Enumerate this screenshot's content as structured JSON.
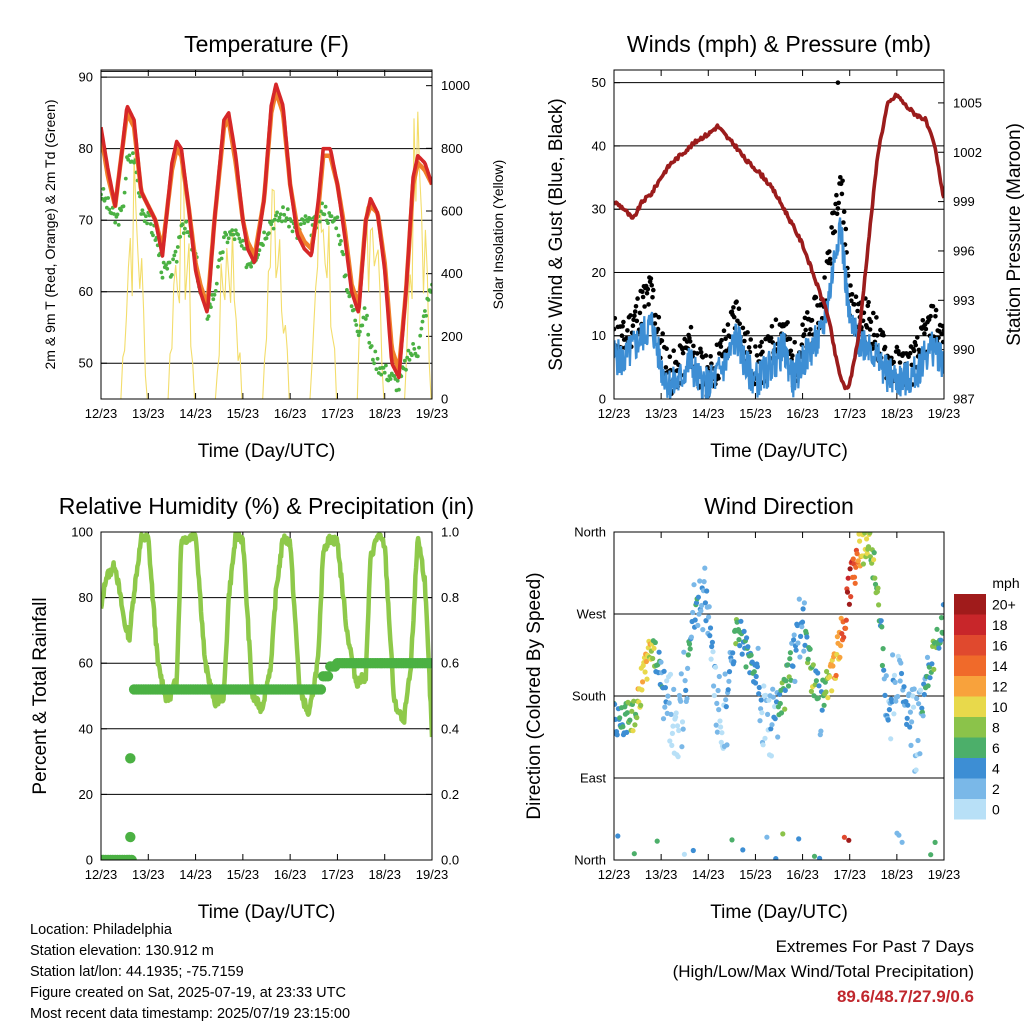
{
  "colors": {
    "temp_2m": "#d62728",
    "temp_9m": "#f07f2a",
    "dewpoint": "#4bb143",
    "solar": "#f3dd6b",
    "wind": "#3d8ed4",
    "gust": "#000000",
    "pressure": "#9b1c1c",
    "rh": "#8ec94a",
    "precip": "#4bb143"
  },
  "x_ticks": [
    "12/23",
    "13/23",
    "14/23",
    "15/23",
    "16/23",
    "17/23",
    "18/23",
    "19/23"
  ],
  "x_label": "Time (Day/UTC)",
  "chart_data": [
    {
      "type": "line",
      "title": "Temperature (F)",
      "xlabel": "Time (Day/UTC)",
      "ylabel": "2m & 9m T (Red, Orange) & 2m Td (Green)",
      "ylabel_right": "Solar Insolation (Yellow)",
      "ylim": [
        45,
        91
      ],
      "y_ticks": [
        50,
        60,
        70,
        80,
        90
      ],
      "ylim_right": [
        0,
        1050
      ],
      "y_ticks_right": [
        0,
        200,
        400,
        600,
        800,
        1000
      ],
      "x": [
        12.0,
        12.15,
        12.3,
        12.45,
        12.55,
        12.7,
        12.85,
        13.0,
        13.15,
        13.3,
        13.5,
        13.6,
        13.7,
        13.85,
        14.0,
        14.1,
        14.25,
        14.4,
        14.6,
        14.7,
        14.85,
        15.0,
        15.1,
        15.25,
        15.45,
        15.6,
        15.7,
        15.85,
        16.0,
        16.15,
        16.3,
        16.45,
        16.6,
        16.7,
        16.85,
        17.0,
        17.15,
        17.3,
        17.45,
        17.6,
        17.7,
        17.85,
        18.0,
        18.15,
        18.3,
        18.45,
        18.6,
        18.7,
        18.85,
        19.0
      ],
      "series": [
        {
          "name": "2m T",
          "values": [
            83,
            77,
            72,
            80,
            86,
            84,
            74,
            72,
            70,
            65,
            78,
            81,
            80,
            72,
            63,
            60,
            57,
            70,
            84,
            85,
            79,
            70,
            66,
            64,
            73,
            86,
            89,
            86,
            75,
            68,
            66,
            65,
            73,
            80,
            80,
            75,
            68,
            60,
            57,
            70,
            73,
            71,
            63,
            50,
            48,
            60,
            76,
            79,
            78,
            75
          ]
        },
        {
          "name": "9m T",
          "values": [
            82,
            76,
            72,
            80,
            85,
            83,
            74,
            72,
            70,
            66,
            77,
            80,
            79,
            72,
            64,
            61,
            58,
            70,
            83,
            84,
            78,
            70,
            67,
            65,
            73,
            85,
            88,
            85,
            75,
            69,
            67,
            66,
            72,
            79,
            79,
            75,
            69,
            61,
            58,
            70,
            72,
            71,
            64,
            52,
            49,
            60,
            75,
            78,
            77,
            75
          ]
        },
        {
          "name": "2m Td",
          "values": [
            74,
            72,
            70,
            71,
            78,
            79,
            72,
            70,
            68,
            63,
            63,
            65,
            70,
            68,
            65,
            60,
            57,
            60,
            67,
            68,
            68,
            66,
            64,
            65,
            68,
            70,
            70,
            71,
            70,
            68,
            70,
            69,
            70,
            72,
            70,
            70,
            63,
            58,
            55,
            57,
            52,
            50,
            49,
            48,
            47,
            50,
            52,
            52,
            57,
            61
          ]
        }
      ],
      "solar_peaks": [
        {
          "x": 12.7,
          "value": 840
        },
        {
          "x": 13.7,
          "value": 820
        },
        {
          "x": 14.7,
          "value": 700
        },
        {
          "x": 15.7,
          "value": 880
        },
        {
          "x": 16.7,
          "value": 850
        },
        {
          "x": 17.7,
          "value": 960
        },
        {
          "x": 18.7,
          "value": 1000
        }
      ]
    },
    {
      "type": "scatter",
      "title": "Winds (mph) & Pressure (mb)",
      "xlabel": "Time (Day/UTC)",
      "ylabel": "Sonic Wind & Gust (Blue, Black)",
      "ylabel_right": "Station Pressure (Maroon)",
      "ylim": [
        0,
        52
      ],
      "y_ticks": [
        0,
        10,
        20,
        30,
        40,
        50
      ],
      "ylim_right": [
        987,
        1007
      ],
      "y_ticks_right": [
        987,
        990,
        993,
        996,
        999,
        1002,
        1005
      ],
      "x": [
        12.0,
        12.2,
        12.4,
        12.6,
        12.8,
        13.0,
        13.2,
        13.4,
        13.6,
        13.8,
        14.0,
        14.2,
        14.4,
        14.6,
        14.8,
        15.0,
        15.2,
        15.4,
        15.6,
        15.8,
        16.0,
        16.2,
        16.4,
        16.5,
        16.6,
        16.7,
        16.8,
        16.9,
        17.0,
        17.2,
        17.4,
        17.6,
        17.8,
        18.0,
        18.2,
        18.4,
        18.6,
        18.8,
        19.0
      ],
      "series": [
        {
          "name": "Wind",
          "values": [
            7,
            6,
            8,
            10,
            12,
            5,
            2,
            3,
            6,
            3,
            2,
            4,
            6,
            10,
            5,
            3,
            4,
            6,
            8,
            3,
            6,
            8,
            10,
            14,
            18,
            24,
            28,
            20,
            12,
            9,
            9,
            6,
            4,
            3,
            3,
            4,
            7,
            8,
            6
          ]
        },
        {
          "name": "Gust",
          "values": [
            10,
            9,
            12,
            15,
            17,
            8,
            4,
            5,
            9,
            5,
            3,
            6,
            9,
            14,
            8,
            5,
            6,
            9,
            12,
            5,
            9,
            12,
            14,
            19,
            24,
            31,
            36,
            27,
            16,
            12,
            13,
            9,
            6,
            5,
            5,
            6,
            10,
            12,
            9
          ]
        },
        {
          "name": "Pressure",
          "values": [
            999.0,
            998.6,
            997.9,
            999.0,
            999.5,
            1000.5,
            1001.3,
            1001.8,
            1002.3,
            1002.8,
            1003.1,
            1003.6,
            1002.9,
            1002.3,
            1001.5,
            1001.0,
            1000.4,
            999.6,
            998.6,
            997.5,
            996.4,
            994.8,
            993.2,
            992.5,
            991.2,
            989.6,
            988.4,
            987.6,
            987.9,
            991.0,
            996.6,
            1002.0,
            1004.9,
            1005.5,
            1004.8,
            1004.3,
            1004.0,
            1002.4,
            999.1
          ]
        }
      ],
      "max_gust_point": {
        "x": 16.75,
        "value": 50
      }
    },
    {
      "type": "line",
      "title": "Relative Humidity (%) & Precipitation (in)",
      "xlabel": "Time (Day/UTC)",
      "ylabel": "Percent & Total Rainfall",
      "ylim": [
        0,
        100
      ],
      "y_ticks": [
        0,
        20,
        40,
        60,
        80,
        100
      ],
      "ylim_right": [
        0,
        1
      ],
      "y_ticks_right": [
        0.0,
        0.2,
        0.4,
        0.6,
        0.8,
        1.0
      ],
      "x": [
        12.0,
        12.1,
        12.3,
        12.5,
        12.6,
        12.7,
        12.85,
        13.0,
        13.2,
        13.4,
        13.6,
        13.7,
        13.85,
        14.0,
        14.2,
        14.4,
        14.6,
        14.7,
        14.85,
        15.0,
        15.2,
        15.4,
        15.6,
        15.7,
        15.85,
        16.0,
        16.2,
        16.4,
        16.6,
        16.7,
        16.85,
        17.0,
        17.2,
        17.4,
        17.6,
        17.7,
        17.85,
        18.0,
        18.2,
        18.4,
        18.55,
        18.7,
        18.85,
        19.0
      ],
      "series": [
        {
          "name": "RH",
          "values": [
            76,
            86,
            90,
            72,
            68,
            82,
            98,
            98,
            60,
            48,
            55,
            98,
            98,
            100,
            60,
            48,
            50,
            80,
            99,
            98,
            50,
            46,
            60,
            82,
            98,
            97,
            52,
            44,
            62,
            95,
            98,
            97,
            70,
            54,
            56,
            92,
            99,
            96,
            48,
            42,
            58,
            99,
            85,
            38
          ]
        },
        {
          "name": "Precip",
          "values": [
            0.0,
            0.0,
            0.0,
            0.0,
            0.0,
            0.52,
            0.52,
            0.52,
            0.52,
            0.52,
            0.52,
            0.52,
            0.52,
            0.52,
            0.52,
            0.52,
            0.52,
            0.52,
            0.52,
            0.52,
            0.52,
            0.52,
            0.52,
            0.52,
            0.52,
            0.52,
            0.52,
            0.52,
            0.52,
            0.56,
            0.59,
            0.6,
            0.6,
            0.6,
            0.6,
            0.6,
            0.6,
            0.6,
            0.6,
            0.6,
            0.6,
            0.6,
            0.6,
            0.6
          ]
        }
      ],
      "precip_outliers": [
        {
          "x": 12.62,
          "value": 0.07
        },
        {
          "x": 12.62,
          "value": 0.31
        }
      ]
    },
    {
      "type": "scatter",
      "title": "Wind Direction",
      "xlabel": "Time (Day/UTC)",
      "ylabel": "Direction (Colored By Speed)",
      "ylim": [
        0,
        360
      ],
      "y_ticks": [
        {
          "value": 0,
          "label": "North"
        },
        {
          "value": 90,
          "label": "East"
        },
        {
          "value": 180,
          "label": "South"
        },
        {
          "value": 270,
          "label": "West"
        },
        {
          "value": 360,
          "label": "North"
        }
      ],
      "legend": {
        "title": "mph",
        "labels": [
          "20+",
          "18",
          "16",
          "14",
          "12",
          "10",
          "8",
          "6",
          "4",
          "2",
          "0"
        ],
        "colors": [
          "#a01b1b",
          "#c8262a",
          "#e0492e",
          "#f06a2a",
          "#f8a23c",
          "#e8d94b",
          "#8bc34a",
          "#4caf6a",
          "#3d8ed4",
          "#7ab8e8",
          "#b8e0f7"
        ],
        "placement": "right"
      },
      "x": [
        12.0,
        12.2,
        12.4,
        12.6,
        12.8,
        13.0,
        13.2,
        13.4,
        13.6,
        13.8,
        14.0,
        14.2,
        14.4,
        14.6,
        14.8,
        15.0,
        15.2,
        15.4,
        15.6,
        15.8,
        16.0,
        16.2,
        16.4,
        16.6,
        16.8,
        17.0,
        17.2,
        17.4,
        17.6,
        17.8,
        18.0,
        18.2,
        18.4,
        18.6,
        18.8,
        19.0
      ],
      "series": [
        {
          "name": "Direction",
          "values": [
            155,
            150,
            160,
            195,
            240,
            200,
            170,
            150,
            240,
            285,
            275,
            160,
            170,
            260,
            230,
            210,
            140,
            155,
            180,
            225,
            265,
            200,
            180,
            195,
            240,
            300,
            340,
            350,
            300,
            150,
            210,
            165,
            140,
            180,
            230,
            275
          ]
        },
        {
          "name": "Speed",
          "values": [
            6,
            6,
            8,
            12,
            10,
            5,
            2,
            1,
            6,
            4,
            4,
            2,
            3,
            8,
            6,
            5,
            2,
            3,
            8,
            5,
            4,
            9,
            4,
            12,
            14,
            20,
            12,
            10,
            8,
            4,
            3,
            4,
            2,
            5,
            8,
            6
          ]
        }
      ]
    }
  ],
  "info": {
    "location": "Location: Philadelphia",
    "elevation": "Station elevation: 130.912 m",
    "latlon": "Station lat/lon: 44.1935; -75.7159",
    "created": "Figure created on Sat, 2025-07-19, at 23:33 UTC",
    "recent": "Most recent data timestamp: 2025/07/19 23:15:00"
  },
  "extremes": {
    "title": "Extremes For Past 7 Days",
    "subtitle": "(High/Low/Max Wind/Total Precipitation)",
    "values": "89.6/48.7/27.9/0.6"
  }
}
